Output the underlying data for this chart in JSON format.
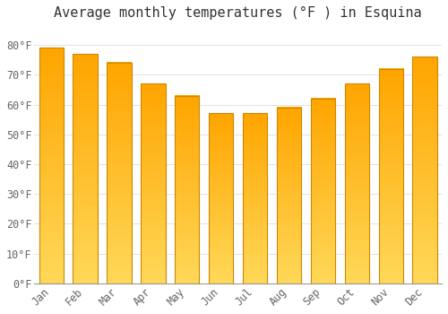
{
  "title": "Average monthly temperatures (°F ) in Esquina",
  "months": [
    "Jan",
    "Feb",
    "Mar",
    "Apr",
    "May",
    "Jun",
    "Jul",
    "Aug",
    "Sep",
    "Oct",
    "Nov",
    "Dec"
  ],
  "values": [
    79,
    77,
    74,
    67,
    63,
    57,
    57,
    59,
    62,
    67,
    72,
    76
  ],
  "bar_color_top": "#FFA500",
  "bar_color_bottom": "#FFD060",
  "bar_edge_color": "#CC8800",
  "background_color": "#FFFFFF",
  "grid_color": "#DDDDDD",
  "yticks": [
    0,
    10,
    20,
    30,
    40,
    50,
    60,
    70,
    80
  ],
  "ylim": [
    0,
    86
  ],
  "ylabel_suffix": "°F",
  "title_fontsize": 11,
  "tick_fontsize": 8.5
}
